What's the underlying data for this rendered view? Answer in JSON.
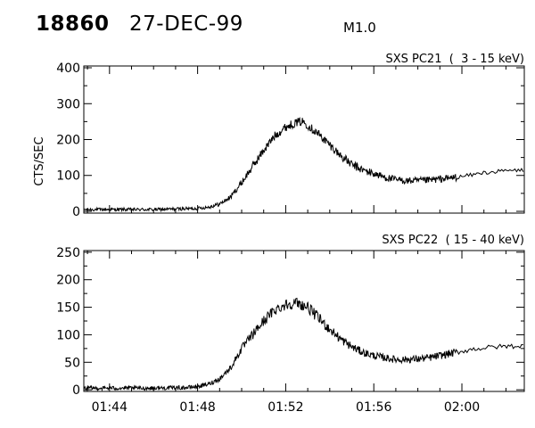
{
  "header": {
    "event_id": "18860",
    "date": "27-DEC-99",
    "flare_class": "M1.0"
  },
  "colors": {
    "ink": "#000000",
    "background": "#ffffff"
  },
  "chart_data": [
    {
      "type": "line",
      "title": "SXS PC21  (  3 - 15 keV)",
      "ylabel": "CTS/SEC",
      "xlabel": "",
      "x_unit": "time (UT, hh:mm)",
      "xlim": [
        "01:42:50",
        "02:02:50"
      ],
      "ylim": [
        -5,
        405
      ],
      "yticks": [
        0,
        100,
        200,
        300,
        400
      ],
      "xticks": [
        "01:44",
        "01:48",
        "01:52",
        "01:56",
        "02:00"
      ],
      "noise_amplitude": 12,
      "series": [
        {
          "x": [
            "01:42:50",
            "01:44:00",
            "01:46:00",
            "01:48:00",
            "01:48:30",
            "01:49:00",
            "01:49:30",
            "01:50:00",
            "01:50:30",
            "01:51:00",
            "01:51:30",
            "01:52:00",
            "01:52:30",
            "01:52:48",
            "01:53:00",
            "01:53:30",
            "01:54:00",
            "01:54:30",
            "01:55:00",
            "01:55:30",
            "01:56:00",
            "01:56:30",
            "01:57:00",
            "01:57:30",
            "01:58:00",
            "01:58:30",
            "01:59:00",
            "01:59:30",
            "02:00:00",
            "02:00:30",
            "02:01:00",
            "02:01:30",
            "02:02:00",
            "02:02:50"
          ],
          "values": [
            5,
            5,
            5,
            8,
            12,
            20,
            40,
            80,
            125,
            170,
            210,
            235,
            248,
            250,
            240,
            215,
            185,
            155,
            130,
            115,
            105,
            95,
            88,
            85,
            85,
            87,
            90,
            93,
            97,
            102,
            108,
            110,
            113,
            115
          ]
        }
      ]
    },
    {
      "type": "line",
      "title": "SXS PC22  ( 15 - 40 keV)",
      "ylabel": "",
      "xlabel": "",
      "x_unit": "time (UT, hh:mm)",
      "xlim": [
        "01:42:50",
        "02:02:50"
      ],
      "ylim": [
        -3,
        253
      ],
      "yticks": [
        0,
        50,
        100,
        150,
        200,
        250
      ],
      "xticks": [
        "01:44",
        "01:48",
        "01:52",
        "01:56",
        "02:00"
      ],
      "noise_amplitude": 10,
      "series": [
        {
          "x": [
            "01:42:50",
            "01:44:00",
            "01:46:00",
            "01:47:30",
            "01:48:00",
            "01:48:30",
            "01:49:00",
            "01:49:30",
            "01:50:00",
            "01:50:30",
            "01:51:00",
            "01:51:30",
            "01:52:00",
            "01:52:30",
            "01:53:00",
            "01:53:30",
            "01:54:00",
            "01:54:30",
            "01:55:00",
            "01:55:30",
            "01:56:00",
            "01:56:30",
            "01:57:00",
            "01:57:30",
            "01:58:00",
            "01:58:30",
            "01:59:00",
            "01:59:30",
            "02:00:00",
            "02:00:30",
            "02:01:00",
            "02:01:30",
            "02:02:00",
            "02:02:50"
          ],
          "values": [
            3,
            3,
            3,
            4,
            6,
            10,
            20,
            40,
            75,
            100,
            125,
            145,
            155,
            158,
            150,
            130,
            110,
            92,
            78,
            68,
            62,
            58,
            55,
            55,
            56,
            58,
            62,
            66,
            70,
            74,
            76,
            78,
            79,
            80
          ]
        }
      ]
    }
  ]
}
